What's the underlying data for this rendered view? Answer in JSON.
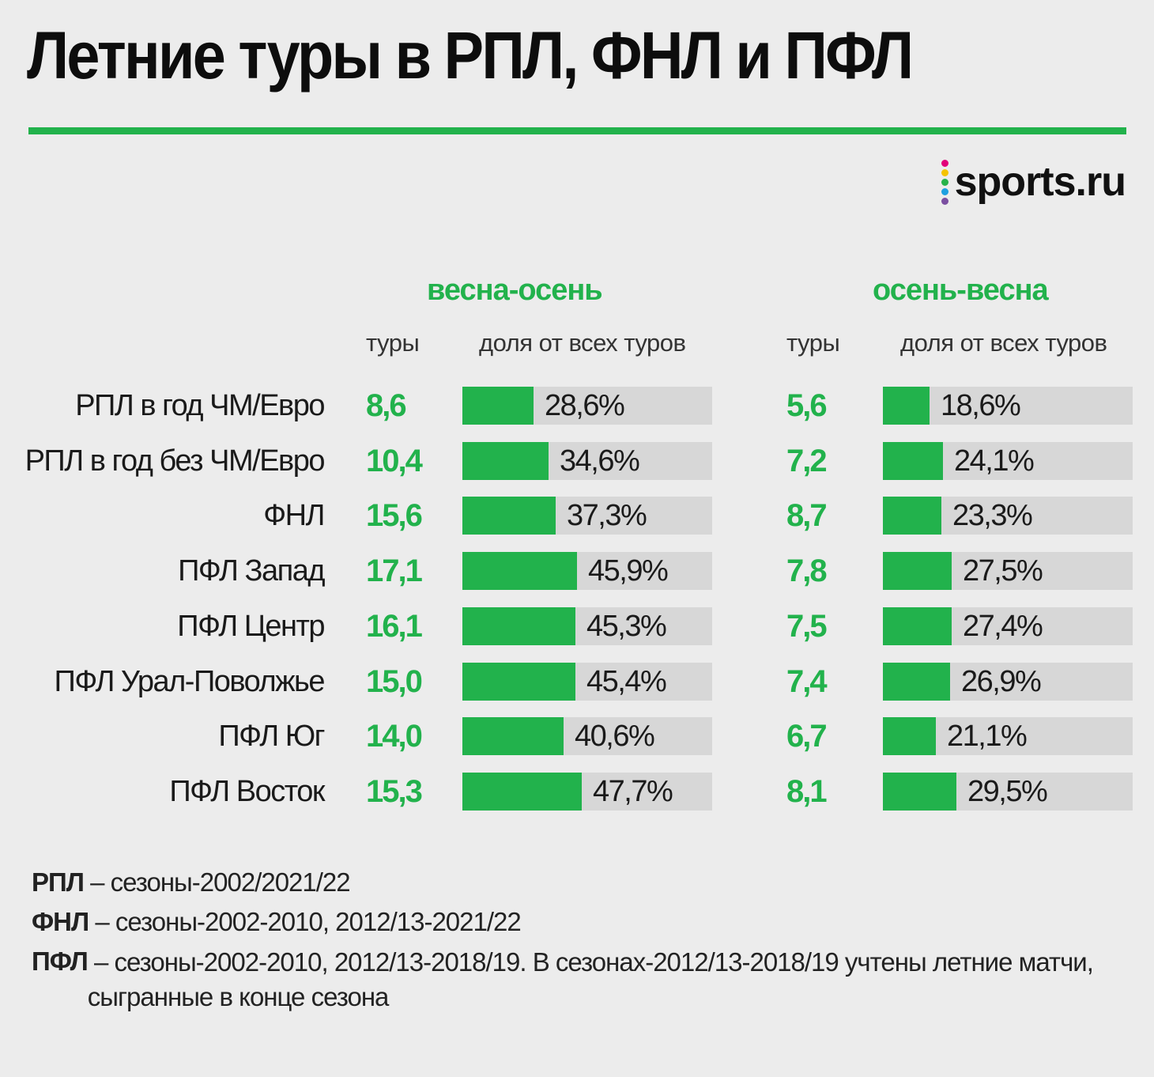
{
  "title": "Летние туры в РПЛ, ФНЛ и ПФЛ",
  "logo": {
    "text": "sports.ru",
    "dot_colors": [
      "#e2007a",
      "#f5c300",
      "#27b24a",
      "#1ea0e0",
      "#7b4fa1"
    ]
  },
  "colors": {
    "accent": "#22b24c",
    "track": "#d7d7d7",
    "background": "#ececec"
  },
  "groups": [
    {
      "title": "весна-осень",
      "col_tours": "туры",
      "col_share": "доля от всех туров"
    },
    {
      "title": "осень-весна",
      "col_tours": "туры",
      "col_share": "доля от всех туров"
    }
  ],
  "chart_data": {
    "type": "bar",
    "categories": [
      "РПЛ в год ЧМ/Евро",
      "РПЛ в год без ЧМ/Евро",
      "ФНЛ",
      "ПФЛ Запад",
      "ПФЛ Центр",
      "ПФЛ Урал-Поволжье",
      "ПФЛ Юг",
      "ПФЛ Восток"
    ],
    "series": [
      {
        "name": "весна-осень",
        "tours": [
          "8,6",
          "10,4",
          "15,6",
          "17,1",
          "16,1",
          "15,0",
          "14,0",
          "15,3"
        ],
        "share_labels": [
          "28,6%",
          "34,6%",
          "37,3%",
          "45,9%",
          "45,3%",
          "45,4%",
          "40,6%",
          "47,7%"
        ],
        "share_values": [
          28.6,
          34.6,
          37.3,
          45.9,
          45.3,
          45.4,
          40.6,
          47.7
        ]
      },
      {
        "name": "осень-весна",
        "tours": [
          "5,6",
          "7,2",
          "8,7",
          "7,8",
          "7,5",
          "7,4",
          "6,7",
          "8,1"
        ],
        "share_labels": [
          "18,6%",
          "24,1%",
          "23,3%",
          "27,5%",
          "27,4%",
          "26,9%",
          "21,1%",
          "29,5%"
        ],
        "share_values": [
          18.6,
          24.1,
          23.3,
          27.5,
          27.4,
          26.9,
          21.1,
          29.5
        ]
      }
    ],
    "xlim": [
      0,
      100
    ]
  },
  "notes": [
    {
      "key": "РПЛ",
      "text": " – сезоны-2002/2021/22"
    },
    {
      "key": "ФНЛ",
      "text": " – сезоны-2002-2010, 2012/13-2021/22"
    },
    {
      "key": "ПФЛ",
      "text": " – сезоны-2002-2010, 2012/13-2018/19. В сезонах-2012/13-2018/19 учтены летние матчи,\nсыгранные в конце сезона"
    }
  ]
}
